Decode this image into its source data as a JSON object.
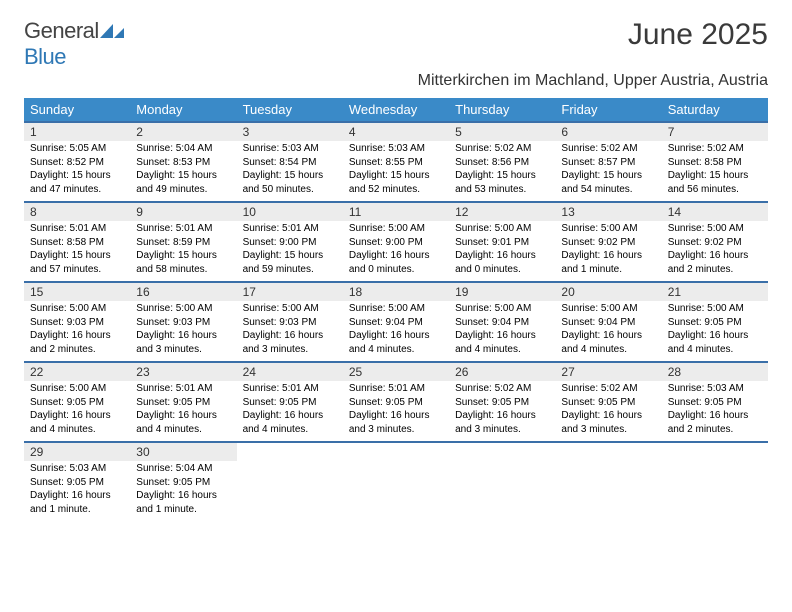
{
  "brand": {
    "name_a": "General",
    "name_b": "Blue"
  },
  "title": "June 2025",
  "location": "Mitterkirchen im Machland, Upper Austria, Austria",
  "colors": {
    "header_bg": "#3a8ac8",
    "header_text": "#ffffff",
    "week_border": "#3a6fa8",
    "daynum_bg": "#ececec",
    "logo_tri": "#2f78b5"
  },
  "fonts": {
    "title_size": 30,
    "location_size": 16,
    "dayhead_size": 13,
    "daynum_size": 12,
    "info_size": 10
  },
  "day_headers": [
    "Sunday",
    "Monday",
    "Tuesday",
    "Wednesday",
    "Thursday",
    "Friday",
    "Saturday"
  ],
  "weeks": [
    [
      {
        "n": "1",
        "sr": "5:05 AM",
        "ss": "8:52 PM",
        "dl": "15 hours and 47 minutes."
      },
      {
        "n": "2",
        "sr": "5:04 AM",
        "ss": "8:53 PM",
        "dl": "15 hours and 49 minutes."
      },
      {
        "n": "3",
        "sr": "5:03 AM",
        "ss": "8:54 PM",
        "dl": "15 hours and 50 minutes."
      },
      {
        "n": "4",
        "sr": "5:03 AM",
        "ss": "8:55 PM",
        "dl": "15 hours and 52 minutes."
      },
      {
        "n": "5",
        "sr": "5:02 AM",
        "ss": "8:56 PM",
        "dl": "15 hours and 53 minutes."
      },
      {
        "n": "6",
        "sr": "5:02 AM",
        "ss": "8:57 PM",
        "dl": "15 hours and 54 minutes."
      },
      {
        "n": "7",
        "sr": "5:02 AM",
        "ss": "8:58 PM",
        "dl": "15 hours and 56 minutes."
      }
    ],
    [
      {
        "n": "8",
        "sr": "5:01 AM",
        "ss": "8:58 PM",
        "dl": "15 hours and 57 minutes."
      },
      {
        "n": "9",
        "sr": "5:01 AM",
        "ss": "8:59 PM",
        "dl": "15 hours and 58 minutes."
      },
      {
        "n": "10",
        "sr": "5:01 AM",
        "ss": "9:00 PM",
        "dl": "15 hours and 59 minutes."
      },
      {
        "n": "11",
        "sr": "5:00 AM",
        "ss": "9:00 PM",
        "dl": "16 hours and 0 minutes."
      },
      {
        "n": "12",
        "sr": "5:00 AM",
        "ss": "9:01 PM",
        "dl": "16 hours and 0 minutes."
      },
      {
        "n": "13",
        "sr": "5:00 AM",
        "ss": "9:02 PM",
        "dl": "16 hours and 1 minute."
      },
      {
        "n": "14",
        "sr": "5:00 AM",
        "ss": "9:02 PM",
        "dl": "16 hours and 2 minutes."
      }
    ],
    [
      {
        "n": "15",
        "sr": "5:00 AM",
        "ss": "9:03 PM",
        "dl": "16 hours and 2 minutes."
      },
      {
        "n": "16",
        "sr": "5:00 AM",
        "ss": "9:03 PM",
        "dl": "16 hours and 3 minutes."
      },
      {
        "n": "17",
        "sr": "5:00 AM",
        "ss": "9:03 PM",
        "dl": "16 hours and 3 minutes."
      },
      {
        "n": "18",
        "sr": "5:00 AM",
        "ss": "9:04 PM",
        "dl": "16 hours and 4 minutes."
      },
      {
        "n": "19",
        "sr": "5:00 AM",
        "ss": "9:04 PM",
        "dl": "16 hours and 4 minutes."
      },
      {
        "n": "20",
        "sr": "5:00 AM",
        "ss": "9:04 PM",
        "dl": "16 hours and 4 minutes."
      },
      {
        "n": "21",
        "sr": "5:00 AM",
        "ss": "9:05 PM",
        "dl": "16 hours and 4 minutes."
      }
    ],
    [
      {
        "n": "22",
        "sr": "5:00 AM",
        "ss": "9:05 PM",
        "dl": "16 hours and 4 minutes."
      },
      {
        "n": "23",
        "sr": "5:01 AM",
        "ss": "9:05 PM",
        "dl": "16 hours and 4 minutes."
      },
      {
        "n": "24",
        "sr": "5:01 AM",
        "ss": "9:05 PM",
        "dl": "16 hours and 4 minutes."
      },
      {
        "n": "25",
        "sr": "5:01 AM",
        "ss": "9:05 PM",
        "dl": "16 hours and 3 minutes."
      },
      {
        "n": "26",
        "sr": "5:02 AM",
        "ss": "9:05 PM",
        "dl": "16 hours and 3 minutes."
      },
      {
        "n": "27",
        "sr": "5:02 AM",
        "ss": "9:05 PM",
        "dl": "16 hours and 3 minutes."
      },
      {
        "n": "28",
        "sr": "5:03 AM",
        "ss": "9:05 PM",
        "dl": "16 hours and 2 minutes."
      }
    ],
    [
      {
        "n": "29",
        "sr": "5:03 AM",
        "ss": "9:05 PM",
        "dl": "16 hours and 1 minute."
      },
      {
        "n": "30",
        "sr": "5:04 AM",
        "ss": "9:05 PM",
        "dl": "16 hours and 1 minute."
      },
      null,
      null,
      null,
      null,
      null
    ]
  ],
  "labels": {
    "sunrise_prefix": "Sunrise: ",
    "sunset_prefix": "Sunset: ",
    "daylight_prefix": "Daylight: "
  }
}
